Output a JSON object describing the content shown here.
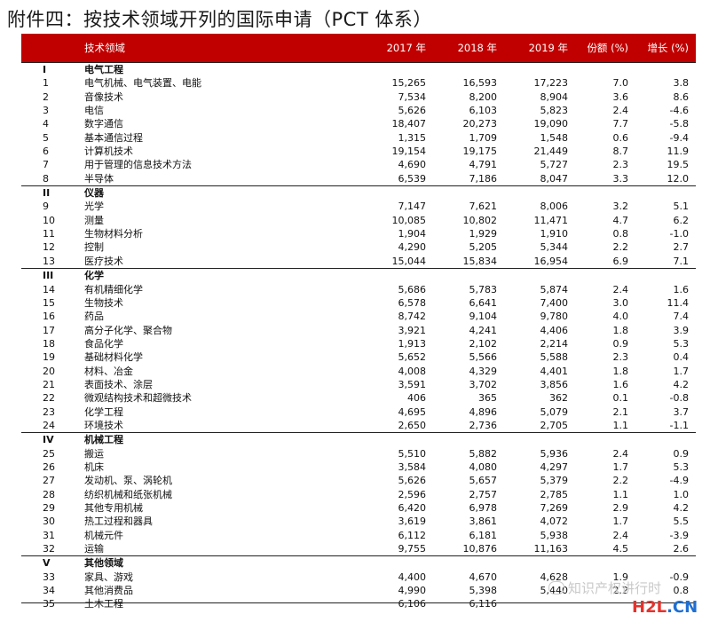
{
  "title": "附件四：按技术领域开列的国际申请（PCT 体系）",
  "header": {
    "field": "技术领域",
    "y2017": "2017 年",
    "y2018": "2018 年",
    "y2019": "2019 年",
    "share": "份额 (%)",
    "growth": "增长 (%)"
  },
  "sections": [
    {
      "no": "I",
      "name": "电气工程",
      "rows": [
        {
          "no": "1",
          "name": "电气机械、电气装置、电能",
          "y2017": "15,265",
          "y2018": "16,593",
          "y2019": "17,223",
          "share": "7.0",
          "growth": "3.8"
        },
        {
          "no": "2",
          "name": "音像技术",
          "y2017": "7,534",
          "y2018": "8,200",
          "y2019": "8,904",
          "share": "3.6",
          "growth": "8.6"
        },
        {
          "no": "3",
          "name": "电信",
          "y2017": "5,626",
          "y2018": "6,103",
          "y2019": "5,823",
          "share": "2.4",
          "growth": "-4.6"
        },
        {
          "no": "4",
          "name": "数字通信",
          "y2017": "18,407",
          "y2018": "20,273",
          "y2019": "19,090",
          "share": "7.7",
          "growth": "-5.8"
        },
        {
          "no": "5",
          "name": "基本通信过程",
          "y2017": "1,315",
          "y2018": "1,709",
          "y2019": "1,548",
          "share": "0.6",
          "growth": "-9.4"
        },
        {
          "no": "6",
          "name": "计算机技术",
          "y2017": "19,154",
          "y2018": "19,175",
          "y2019": "21,449",
          "share": "8.7",
          "growth": "11.9"
        },
        {
          "no": "7",
          "name": "用于管理的信息技术方法",
          "y2017": "4,690",
          "y2018": "4,791",
          "y2019": "5,727",
          "share": "2.3",
          "growth": "19.5"
        },
        {
          "no": "8",
          "name": "半导体",
          "y2017": "6,539",
          "y2018": "7,186",
          "y2019": "8,047",
          "share": "3.3",
          "growth": "12.0"
        }
      ]
    },
    {
      "no": "II",
      "name": "仪器",
      "rows": [
        {
          "no": "9",
          "name": "光学",
          "y2017": "7,147",
          "y2018": "7,621",
          "y2019": "8,006",
          "share": "3.2",
          "growth": "5.1"
        },
        {
          "no": "10",
          "name": "测量",
          "y2017": "10,085",
          "y2018": "10,802",
          "y2019": "11,471",
          "share": "4.7",
          "growth": "6.2"
        },
        {
          "no": "11",
          "name": "生物材料分析",
          "y2017": "1,904",
          "y2018": "1,929",
          "y2019": "1,910",
          "share": "0.8",
          "growth": "-1.0"
        },
        {
          "no": "12",
          "name": "控制",
          "y2017": "4,290",
          "y2018": "5,205",
          "y2019": "5,344",
          "share": "2.2",
          "growth": "2.7"
        },
        {
          "no": "13",
          "name": "医疗技术",
          "y2017": "15,044",
          "y2018": "15,834",
          "y2019": "16,954",
          "share": "6.9",
          "growth": "7.1"
        }
      ]
    },
    {
      "no": "III",
      "name": "化学",
      "rows": [
        {
          "no": "14",
          "name": "有机精细化学",
          "y2017": "5,686",
          "y2018": "5,783",
          "y2019": "5,874",
          "share": "2.4",
          "growth": "1.6"
        },
        {
          "no": "15",
          "name": "生物技术",
          "y2017": "6,578",
          "y2018": "6,641",
          "y2019": "7,400",
          "share": "3.0",
          "growth": "11.4"
        },
        {
          "no": "16",
          "name": "药品",
          "y2017": "8,742",
          "y2018": "9,104",
          "y2019": "9,780",
          "share": "4.0",
          "growth": "7.4"
        },
        {
          "no": "17",
          "name": "高分子化学、聚合物",
          "y2017": "3,921",
          "y2018": "4,241",
          "y2019": "4,406",
          "share": "1.8",
          "growth": "3.9"
        },
        {
          "no": "18",
          "name": "食品化学",
          "y2017": "1,913",
          "y2018": "2,102",
          "y2019": "2,214",
          "share": "0.9",
          "growth": "5.3"
        },
        {
          "no": "19",
          "name": "基础材料化学",
          "y2017": "5,652",
          "y2018": "5,566",
          "y2019": "5,588",
          "share": "2.3",
          "growth": "0.4"
        },
        {
          "no": "20",
          "name": "材料、冶金",
          "y2017": "4,008",
          "y2018": "4,329",
          "y2019": "4,401",
          "share": "1.8",
          "growth": "1.7"
        },
        {
          "no": "21",
          "name": "表面技术、涂层",
          "y2017": "3,591",
          "y2018": "3,702",
          "y2019": "3,856",
          "share": "1.6",
          "growth": "4.2"
        },
        {
          "no": "22",
          "name": "微观结构技术和超微技术",
          "y2017": "406",
          "y2018": "365",
          "y2019": "362",
          "share": "0.1",
          "growth": "-0.8"
        },
        {
          "no": "23",
          "name": "化学工程",
          "y2017": "4,695",
          "y2018": "4,896",
          "y2019": "5,079",
          "share": "2.1",
          "growth": "3.7"
        },
        {
          "no": "24",
          "name": "环境技术",
          "y2017": "2,650",
          "y2018": "2,736",
          "y2019": "2,705",
          "share": "1.1",
          "growth": "-1.1"
        }
      ]
    },
    {
      "no": "IV",
      "name": "机械工程",
      "rows": [
        {
          "no": "25",
          "name": "搬运",
          "y2017": "5,510",
          "y2018": "5,882",
          "y2019": "5,936",
          "share": "2.4",
          "growth": "0.9"
        },
        {
          "no": "26",
          "name": "机床",
          "y2017": "3,584",
          "y2018": "4,080",
          "y2019": "4,297",
          "share": "1.7",
          "growth": "5.3"
        },
        {
          "no": "27",
          "name": "发动机、泵、涡轮机",
          "y2017": "5,626",
          "y2018": "5,657",
          "y2019": "5,379",
          "share": "2.2",
          "growth": "-4.9"
        },
        {
          "no": "28",
          "name": "纺织机械和纸张机械",
          "y2017": "2,596",
          "y2018": "2,757",
          "y2019": "2,785",
          "share": "1.1",
          "growth": "1.0"
        },
        {
          "no": "29",
          "name": "其他专用机械",
          "y2017": "6,420",
          "y2018": "6,978",
          "y2019": "7,269",
          "share": "2.9",
          "growth": "4.2"
        },
        {
          "no": "30",
          "name": "热工过程和器具",
          "y2017": "3,619",
          "y2018": "3,861",
          "y2019": "4,072",
          "share": "1.7",
          "growth": "5.5"
        },
        {
          "no": "31",
          "name": "机械元件",
          "y2017": "6,112",
          "y2018": "6,181",
          "y2019": "5,938",
          "share": "2.4",
          "growth": "-3.9"
        },
        {
          "no": "32",
          "name": "运输",
          "y2017": "9,755",
          "y2018": "10,876",
          "y2019": "11,163",
          "share": "4.5",
          "growth": "2.6"
        }
      ]
    },
    {
      "no": "V",
      "name": "其他领域",
      "rows": [
        {
          "no": "33",
          "name": "家具、游戏",
          "y2017": "4,400",
          "y2018": "4,670",
          "y2019": "4,628",
          "share": "1.9",
          "growth": "-0.9"
        },
        {
          "no": "34",
          "name": "其他消费品",
          "y2017": "4,990",
          "y2018": "5,398",
          "y2019": "5,440",
          "share": "2.2",
          "growth": "0.8"
        },
        {
          "no": "35",
          "name": "土木工程",
          "y2017": "6,106",
          "y2018": "6,116",
          "y2019": "",
          "share": "",
          "growth": ""
        }
      ]
    }
  ],
  "watermark": "知识产权讲行时",
  "logo": {
    "a": "H2L",
    "b": ".CN"
  }
}
